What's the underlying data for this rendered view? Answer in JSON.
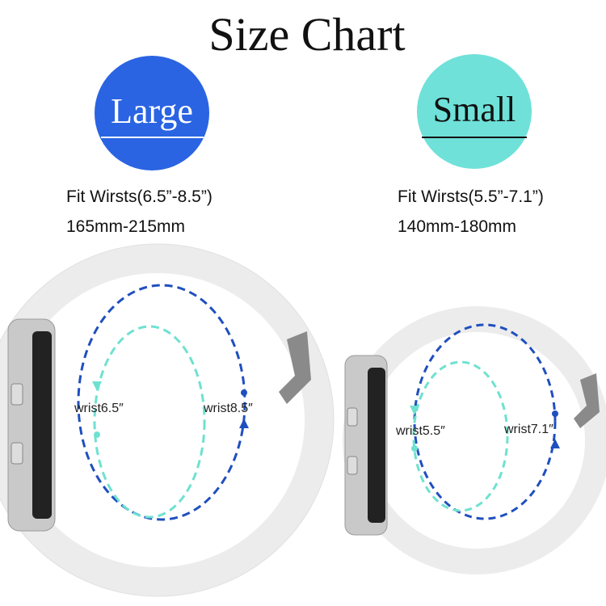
{
  "header": {
    "title": "Size Chart"
  },
  "sizes": [
    {
      "badge": "Large",
      "fit": "Fit Wirsts(6.5”-8.5”)",
      "mm": "165mm-215mm",
      "inner_label": "wrist6.5″",
      "outer_label": "wrist8.5″"
    },
    {
      "badge": "Small",
      "fit": "Fit Wirsts(5.5”-7.1”)",
      "mm": "140mm-180mm",
      "inner_label": "wrist5.5″",
      "outer_label": "wrist7.1″"
    }
  ]
}
